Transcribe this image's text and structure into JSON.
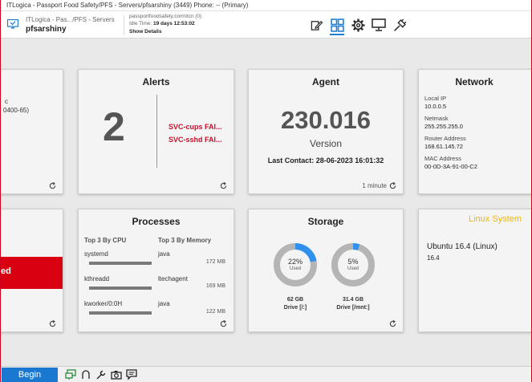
{
  "window": {
    "title": "ITLogica - Passport Food Safety/PFS - Servers/pfsarshiny (3449) Phone: -- (Primary)"
  },
  "header": {
    "breadcrumb": "ITLogica - Pas.../PFS - Servers",
    "hostname": "pfsarshiny",
    "user": "passportfoodsafety.com\\itcn (0)",
    "idle_label": "Idle Time:",
    "idle_value": "19 days 12:53:02",
    "show_details": "Show Details",
    "accent": "#1e7fd6",
    "toolbar_icons": [
      "edit-icon",
      "dashboard-grid-icon",
      "settings-gear-icon",
      "monitor-icon",
      "disconnect-plug-icon"
    ]
  },
  "cards": {
    "left_partial_top": {
      "text": "0400-65)",
      "mark": "c"
    },
    "left_partial_bottom": {
      "text": "ed",
      "color": "#d90012"
    },
    "alerts": {
      "title": "Alerts",
      "count": "2",
      "items": [
        "SVC-cups FAI...",
        "SVC-sshd FAI..."
      ],
      "item_color": "#c8102e"
    },
    "agent": {
      "title": "Agent",
      "version_number": "230.016",
      "version_label": "Version",
      "last_contact": "Last Contact: 28-06-2023 16:01:32",
      "refresh_interval": "1 minute"
    },
    "network": {
      "title": "Network",
      "local_ip_label": "Local IP",
      "local_ip": "10.0.0.5",
      "netmask_label": "Netmask",
      "netmask": "255.255.255.0",
      "router_label": "Router Address",
      "router": "168.61.145.72",
      "mac_label": "MAC Address",
      "mac": "00-0D-3A-91-00-C2"
    },
    "processes": {
      "title": "Processes",
      "cpu_header": "Top 3 By CPU",
      "mem_header": "Top 3 By Memory",
      "cpu": [
        {
          "name": "systemd"
        },
        {
          "name": "kthreadd"
        },
        {
          "name": "kworker/0:0H"
        }
      ],
      "memory": [
        {
          "name": "java",
          "size": "172 MB"
        },
        {
          "name": "ltechagent",
          "size": "169 MB"
        },
        {
          "name": "java",
          "size": "122 MB"
        }
      ]
    },
    "storage": {
      "title": "Storage",
      "used_label": "Used",
      "ring_color": "#b5b5b5",
      "used_color": "#2f90ee",
      "drives": [
        {
          "percent": 22,
          "percent_text": "22%",
          "size": "62 GB",
          "name": "Drive [/:]"
        },
        {
          "percent": 5,
          "percent_text": "5%",
          "size": "31.4 GB",
          "name": "Drive [/mnt:]"
        }
      ]
    },
    "system": {
      "title": "Linux System",
      "title_color": "#f5b800",
      "os": "Ubuntu 16.4 (Linux)",
      "version": "16.4"
    }
  },
  "taskbar": {
    "begin_label": "Begin",
    "icons": [
      "remote-screen-icon",
      "headset-icon",
      "wrench-icon",
      "camera-icon",
      "chat-icon"
    ]
  }
}
